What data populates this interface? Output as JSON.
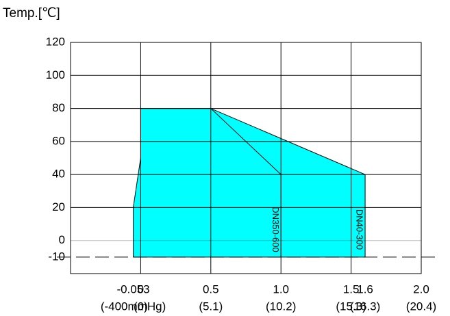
{
  "chart_data": {
    "type": "area",
    "title": "Temp.[℃]",
    "xlim": [
      -0.5,
      2.0
    ],
    "ylim": [
      -20,
      120
    ],
    "xticks": [
      -0.053,
      0,
      0.5,
      {
        "value": 1,
        "label": "1.0"
      },
      1.5,
      1.6,
      {
        "value": 2,
        "label": "2.0"
      }
    ],
    "xtick_sublabels": [
      "(-400mmHg)",
      "(0)",
      "(5.1)",
      "(10.2)",
      "(15.3)",
      "(16.3)",
      "(20.4)"
    ],
    "xgrid": [
      0,
      0.5,
      1,
      1.5
    ],
    "yticks": [
      -10,
      0,
      20,
      40,
      60,
      80,
      100,
      120
    ],
    "dashed_yticks": [
      -10
    ],
    "grid": true,
    "series": [
      {
        "name": "DN40-300",
        "color": "#00ffff",
        "x": [
          -0.053,
          -0.053,
          0,
          0,
          0.5,
          1.6,
          1.6
        ],
        "values": [
          -10,
          20,
          50,
          80,
          80,
          40,
          -10
        ]
      },
      {
        "name": "DN350-600",
        "color": "#000000",
        "x": [
          0.5,
          1,
          1
        ],
        "values": [
          80,
          40,
          -10
        ]
      }
    ]
  }
}
